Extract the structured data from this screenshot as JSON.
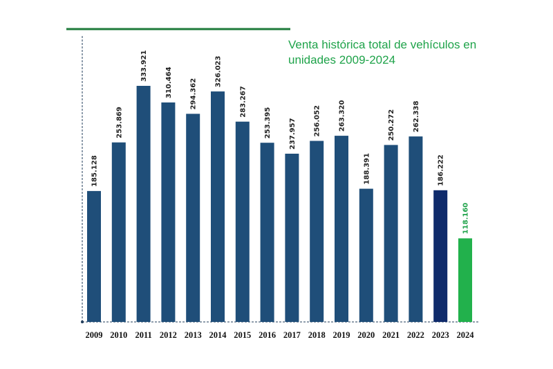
{
  "chart_data": {
    "type": "bar",
    "title": "Venta histórica total de vehículos en unidades 2009-2024",
    "title_lines": [
      "Venta histórica total de vehículos en",
      "unidades 2009-2024"
    ],
    "xlabel": "",
    "ylabel": "",
    "ylim": [
      0,
      340000
    ],
    "grid": false,
    "legend": "none",
    "categories": [
      "2009",
      "2010",
      "2011",
      "2012",
      "2013",
      "2014",
      "2015",
      "2016",
      "2017",
      "2018",
      "2019",
      "2020",
      "2021",
      "2022",
      "2023",
      "2024"
    ],
    "values": [
      185128,
      253869,
      333921,
      310464,
      294362,
      326023,
      283267,
      253395,
      237957,
      256052,
      263320,
      188391,
      250272,
      262338,
      186222,
      118160
    ],
    "value_labels": [
      "185.128",
      "253.869",
      "333.921",
      "310.464",
      "294.362",
      "326.023",
      "283.267",
      "253.395",
      "237.957",
      "256.052",
      "263.320",
      "188.391",
      "250.272",
      "262.338",
      "186.222",
      "118.160"
    ],
    "colors": {
      "default_bar": "#1f4e79",
      "highlight_2023": "#0f2b6b",
      "highlight_2024": "#22b14c",
      "title": "#1fa34a",
      "top_rule": "#1e7a3a",
      "axis": "#1f3b5a",
      "label_2024": "#1fa34a"
    },
    "bar_colors": [
      "#1f4e79",
      "#1f4e79",
      "#1f4e79",
      "#1f4e79",
      "#1f4e79",
      "#1f4e79",
      "#1f4e79",
      "#1f4e79",
      "#1f4e79",
      "#1f4e79",
      "#1f4e79",
      "#1f4e79",
      "#1f4e79",
      "#1f4e79",
      "#0f2b6b",
      "#22b14c"
    ],
    "label_colors": [
      "#222222",
      "#222222",
      "#222222",
      "#222222",
      "#222222",
      "#222222",
      "#222222",
      "#222222",
      "#222222",
      "#222222",
      "#222222",
      "#222222",
      "#222222",
      "#222222",
      "#222222",
      "#1fa34a"
    ]
  }
}
